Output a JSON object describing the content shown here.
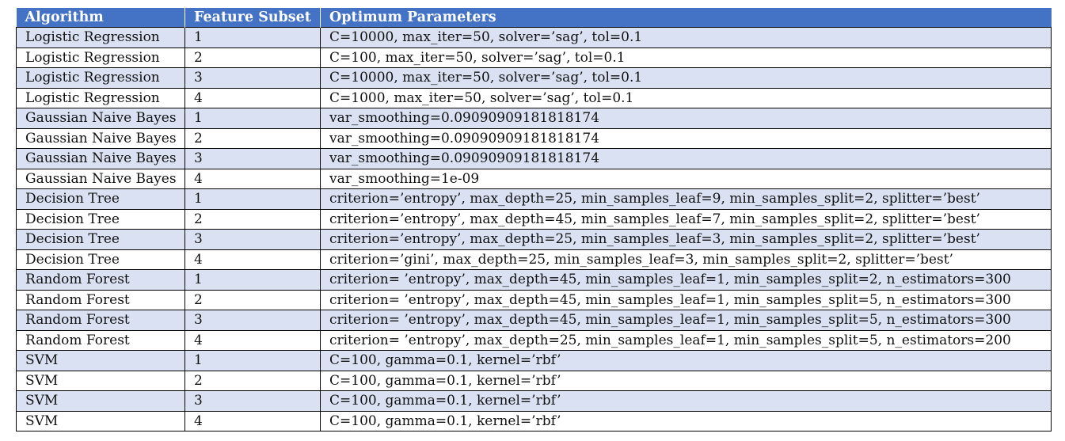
{
  "table": {
    "headers": [
      "Algorithm",
      "Feature Subset",
      "Optimum Parameters"
    ],
    "rows": [
      [
        "Logistic Regression",
        "1",
        "C=10000, max_iter=50, solver=’sag’, tol=0.1"
      ],
      [
        "Logistic Regression",
        "2",
        "C=100, max_iter=50, solver=’sag’, tol=0.1"
      ],
      [
        "Logistic Regression",
        "3",
        "C=10000, max_iter=50, solver=’sag’, tol=0.1"
      ],
      [
        "Logistic Regression",
        "4",
        "C=1000, max_iter=50, solver=’sag’, tol=0.1"
      ],
      [
        "Gaussian Naive Bayes",
        "1",
        "var_smoothing=0.09090909181818174"
      ],
      [
        "Gaussian Naive Bayes",
        "2",
        "var_smoothing=0.09090909181818174"
      ],
      [
        "Gaussian Naive Bayes",
        "3",
        "var_smoothing=0.09090909181818174"
      ],
      [
        "Gaussian Naive Bayes",
        "4",
        "var_smoothing=1e-09"
      ],
      [
        "Decision Tree",
        "1",
        "criterion=’entropy’, max_depth=25, min_samples_leaf=9, min_samples_split=2, splitter=’best’"
      ],
      [
        "Decision Tree",
        "2",
        "criterion=’entropy’, max_depth=45, min_samples_leaf=7, min_samples_split=2, splitter=’best’"
      ],
      [
        "Decision Tree",
        "3",
        "criterion=’entropy’, max_depth=25, min_samples_leaf=3, min_samples_split=2, splitter=’best’"
      ],
      [
        "Decision Tree",
        "4",
        "criterion=’gini’, max_depth=25, min_samples_leaf=3, min_samples_split=2, splitter=’best’"
      ],
      [
        "Random Forest",
        "1",
        "criterion= ’entropy’, max_depth=45, min_samples_leaf=1, min_samples_split=2, n_estimators=300"
      ],
      [
        "Random Forest",
        "2",
        "criterion= ’entropy’, max_depth=45, min_samples_leaf=1, min_samples_split=5, n_estimators=300"
      ],
      [
        "Random Forest",
        "3",
        "criterion= ’entropy’, max_depth=45, min_samples_leaf=1, min_samples_split=5, n_estimators=300"
      ],
      [
        "Random Forest",
        "4",
        "criterion= ’entropy’, max_depth=25, min_samples_leaf=1, min_samples_split=5, n_estimators=200"
      ],
      [
        "SVM",
        "1",
        "C=100, gamma=0.1, kernel=’rbf’"
      ],
      [
        "SVM",
        "2",
        "C=100, gamma=0.1, kernel=’rbf’"
      ],
      [
        "SVM",
        "3",
        "C=100, gamma=0.1, kernel=’rbf’"
      ],
      [
        "SVM",
        "4",
        "C=100, gamma=0.1, kernel=’rbf’"
      ]
    ]
  },
  "colors": {
    "header_bg": "#4472c4",
    "header_text": "#ffffff",
    "stripe_bg": "#d9e1f2",
    "row_bg": "#ffffff",
    "border": "#000000"
  }
}
